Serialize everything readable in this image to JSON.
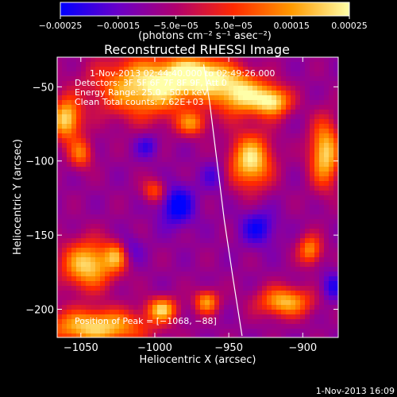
{
  "chart_data": {
    "type": "heatmap",
    "title": "Reconstructed RHESSI Image",
    "xlabel": "Heliocentric X (arcsec)",
    "ylabel": "Heliocentric Y (arcsec)",
    "xlim": [
      -1066,
      -876
    ],
    "ylim": [
      -219,
      -30
    ],
    "xticks": [
      -1050,
      -1000,
      -950,
      -900
    ],
    "xtick_labels": [
      "−1050",
      "−1000",
      "−950",
      "−900"
    ],
    "yticks": [
      -50,
      -100,
      -150,
      -200
    ],
    "ytick_labels": [
      "−50",
      "−100",
      "−150",
      "−200"
    ],
    "colorbar": {
      "range": [
        -0.00025,
        0.00025
      ],
      "ticks": [
        -0.00025,
        -0.00015,
        -5e-05,
        5e-05,
        0.00015,
        0.00025
      ],
      "tick_labels": [
        "−0.00025",
        "−0.00015",
        "−5.0e−05",
        "5.0e−05",
        "0.00015",
        "0.00025"
      ],
      "unit_text": "(photons cm⁻² s⁻¹ asec⁻²)",
      "colors": [
        "#0000ff",
        "#6a00c8",
        "#b0006e",
        "#ff2a00",
        "#ff9a00",
        "#ffffa8"
      ]
    },
    "limb_curve": [
      [
        -967,
        -35
      ],
      [
        -963,
        -60
      ],
      [
        -958,
        -100
      ],
      [
        -953,
        -140
      ],
      [
        -947,
        -180
      ],
      [
        -941,
        -218
      ]
    ],
    "limb_color": "#ffffff",
    "peak": [
      -1068,
      -88
    ],
    "hot_regions": [
      [
        -1005,
        -50,
        34,
        20,
        1.0
      ],
      [
        -970,
        -42,
        22,
        12,
        1.0
      ],
      [
        -942,
        -55,
        18,
        14,
        0.95
      ],
      [
        -920,
        -60,
        12,
        10,
        0.9
      ],
      [
        -885,
        -95,
        10,
        22,
        0.95
      ],
      [
        -935,
        -100,
        14,
        18,
        1.0
      ],
      [
        -1060,
        -72,
        10,
        14,
        0.95
      ],
      [
        -1050,
        -95,
        8,
        10,
        0.6
      ],
      [
        -1045,
        -170,
        18,
        16,
        0.95
      ],
      [
        -1025,
        -163,
        8,
        10,
        0.8
      ],
      [
        -1040,
        -212,
        34,
        12,
        0.95
      ],
      [
        -995,
        -200,
        10,
        8,
        0.85
      ],
      [
        -965,
        -195,
        8,
        8,
        0.75
      ],
      [
        -912,
        -195,
        18,
        10,
        0.85
      ],
      [
        -895,
        -160,
        8,
        10,
        0.7
      ],
      [
        -1000,
        -120,
        8,
        8,
        0.55
      ],
      [
        -975,
        -75,
        10,
        8,
        0.6
      ]
    ],
    "cold_regions": [
      [
        -985,
        -130,
        12,
        14,
        1.0
      ],
      [
        -1020,
        -160,
        10,
        10,
        0.8
      ],
      [
        -930,
        -145,
        12,
        12,
        0.8
      ],
      [
        -880,
        -185,
        8,
        10,
        0.7
      ],
      [
        -1005,
        -90,
        8,
        8,
        0.6
      ],
      [
        -960,
        -110,
        8,
        10,
        0.5
      ]
    ]
  },
  "annotations": {
    "time_range": "1-Nov-2013 02:44:40.000 to 02:49:26.000",
    "detectors": "Detectors: 3F 5F 6F 7F 8F 9F, Att 0",
    "energy": "Energy Range: 25.0 - 50.0 keV",
    "clean": "Clean     Total counts: 7.62E+03",
    "peak_text": "Position of Peak = [−1068, −88]"
  },
  "footer": {
    "timestamp": "1-Nov-2013 16:09"
  }
}
